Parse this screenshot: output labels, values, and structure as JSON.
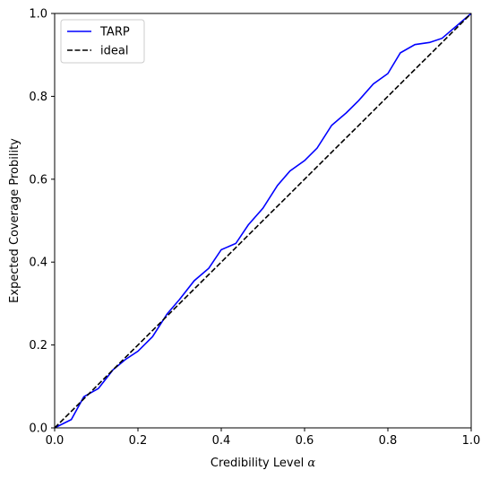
{
  "chart_data": {
    "type": "line",
    "title": "",
    "xlabel": "Credibility Level ",
    "xlabel_symbol": "α",
    "ylabel": "Expected Coverage Probility",
    "xlim": [
      0,
      1
    ],
    "ylim": [
      0,
      1
    ],
    "xticks": [
      "0.0",
      "0.2",
      "0.4",
      "0.6",
      "0.8",
      "1.0"
    ],
    "yticks": [
      "0.0",
      "0.2",
      "0.4",
      "0.6",
      "0.8",
      "1.0"
    ],
    "grid": false,
    "legend_position": "upper-left",
    "series": [
      {
        "name": "TARP",
        "color": "#0000ff",
        "style": "solid",
        "x": [
          0.0,
          0.04,
          0.07,
          0.105,
          0.14,
          0.17,
          0.2,
          0.235,
          0.27,
          0.3,
          0.335,
          0.37,
          0.4,
          0.435,
          0.465,
          0.5,
          0.535,
          0.565,
          0.6,
          0.63,
          0.665,
          0.7,
          0.73,
          0.765,
          0.8,
          0.83,
          0.865,
          0.9,
          0.93,
          0.965,
          1.0
        ],
        "y": [
          0.0,
          0.02,
          0.075,
          0.095,
          0.14,
          0.165,
          0.185,
          0.22,
          0.275,
          0.31,
          0.355,
          0.385,
          0.43,
          0.445,
          0.49,
          0.53,
          0.585,
          0.62,
          0.645,
          0.675,
          0.73,
          0.76,
          0.79,
          0.83,
          0.855,
          0.905,
          0.925,
          0.93,
          0.94,
          0.97,
          1.0
        ]
      },
      {
        "name": "ideal",
        "color": "#000000",
        "style": "dashed",
        "x": [
          0.0,
          1.0
        ],
        "y": [
          0.0,
          1.0
        ]
      }
    ]
  }
}
